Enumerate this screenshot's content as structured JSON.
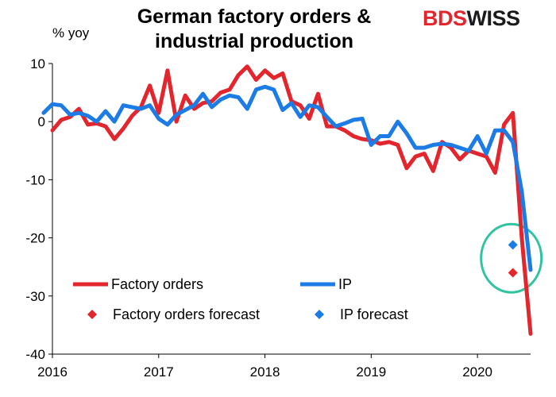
{
  "chart_data": {
    "type": "line",
    "title": "German factory orders & industrial production",
    "title_lines": [
      "German factory orders &",
      "industrial production"
    ],
    "ylabel": "% yoy",
    "xlabel": "",
    "ylim": [
      -40,
      10
    ],
    "yticks": [
      10,
      0,
      -10,
      -20,
      -30,
      -40
    ],
    "xticks": [
      "2016",
      "2017",
      "2018",
      "2019",
      "2020"
    ],
    "x_start": "2016-01",
    "legend_position": "bottom-left",
    "grid": false,
    "series": [
      {
        "name": "Factory orders",
        "color": "#e3262d",
        "style": "line",
        "values": [
          -1.5,
          0.3,
          0.8,
          2.2,
          -0.5,
          -0.3,
          -0.8,
          -3.0,
          -1.2,
          1.0,
          2.5,
          6.2,
          1.5,
          8.8,
          0.0,
          4.5,
          2.2,
          3.2,
          3.5,
          5.0,
          5.5,
          8.0,
          9.5,
          7.2,
          8.8,
          7.5,
          8.3,
          3.5,
          2.8,
          0.5,
          4.8,
          -0.8,
          -0.8,
          -1.5,
          -2.5,
          -3.0,
          -3.2,
          -3.8,
          -3.5,
          -4.0,
          -8.0,
          -6.0,
          -5.5,
          -8.5,
          -3.5,
          -4.5,
          -6.5,
          -5.0,
          -5.5,
          -6.0,
          -8.8,
          -0.5,
          1.5,
          -20.0,
          -36.5
        ],
        "x_start": "2016-01"
      },
      {
        "name": "IP",
        "color": "#1c7be4",
        "style": "line",
        "values": [
          1.5,
          3.0,
          2.8,
          1.2,
          1.5,
          1.0,
          0.0,
          1.8,
          0.0,
          2.8,
          2.5,
          2.2,
          2.8,
          0.5,
          -0.5,
          1.2,
          2.0,
          2.8,
          4.8,
          2.5,
          3.8,
          4.5,
          4.2,
          2.2,
          5.5,
          6.0,
          5.5,
          2.0,
          3.2,
          0.8,
          2.8,
          2.5,
          0.8,
          -0.8,
          -0.3,
          0.3,
          0.5,
          -4.0,
          -2.5,
          -2.5,
          0.0,
          -2.0,
          -4.5,
          -4.5,
          -4.0,
          -3.8,
          -4.0,
          -4.5,
          -5.0,
          -2.5,
          -5.5,
          -1.5,
          -1.5,
          -3.5,
          -12.0,
          -25.5
        ],
        "x_start": "2015-12"
      },
      {
        "name": "Factory orders forecast",
        "color": "#e3262d",
        "style": "marker",
        "points": [
          {
            "x": "2020-05",
            "y": -26.0
          }
        ]
      },
      {
        "name": "IP forecast",
        "color": "#1c7be4",
        "style": "marker",
        "points": [
          {
            "x": "2020-05",
            "y": -21.2
          }
        ]
      }
    ],
    "highlight_circle": {
      "color": "#2ec4a0",
      "center_x": "2020-05",
      "center_y": -23.5
    }
  },
  "branding": {
    "logo_part1": "BD",
    "logo_s": "S",
    "logo_part2": "WISS"
  }
}
